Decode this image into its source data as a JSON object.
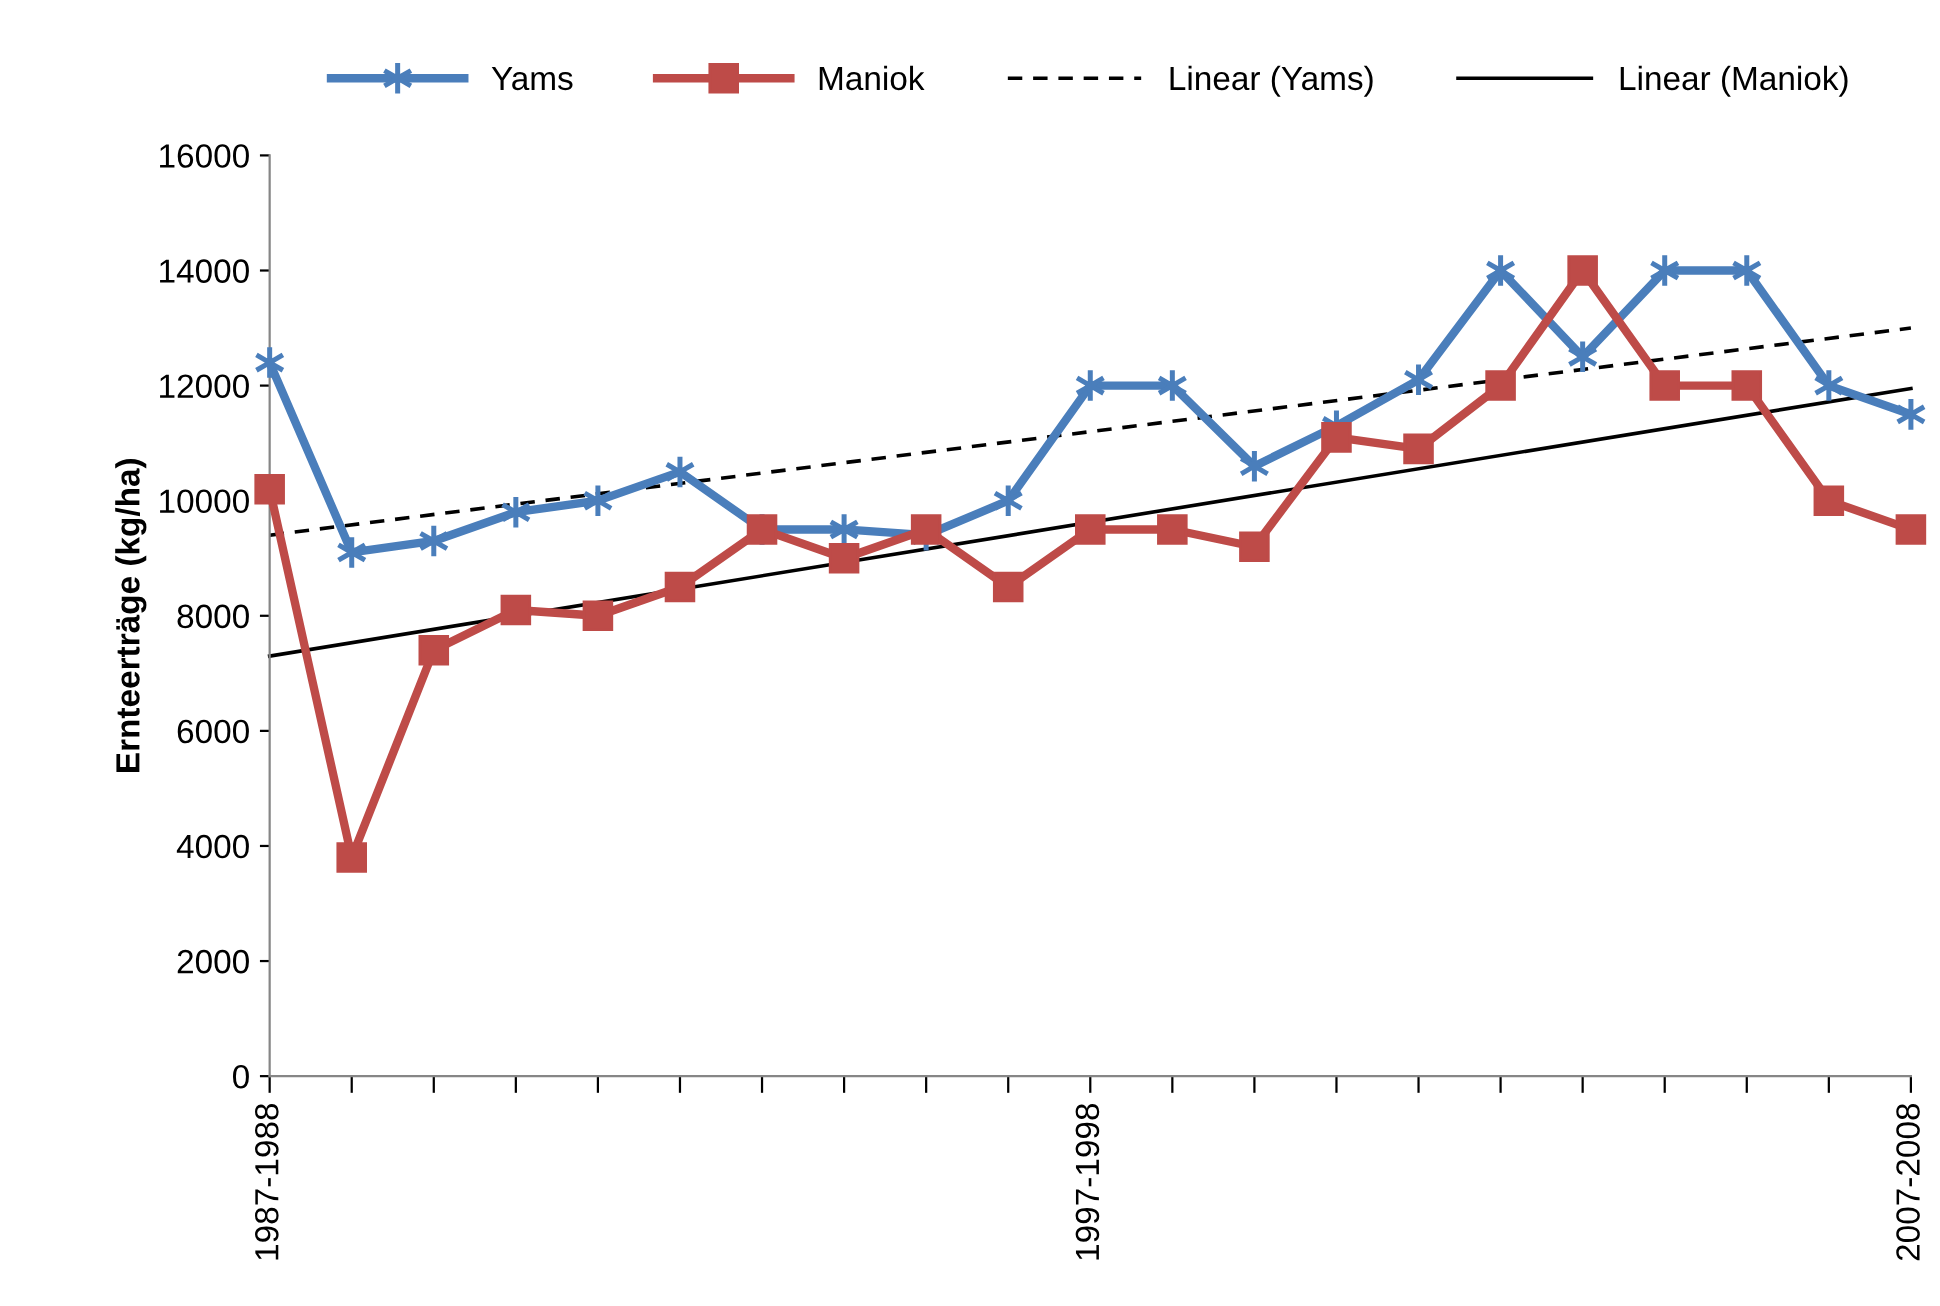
{
  "chart_data": {
    "type": "line",
    "ylabel": "Ernteerträge (kg/ha)",
    "categories": [
      "1987-1988",
      null,
      null,
      null,
      null,
      null,
      null,
      null,
      null,
      null,
      "1997-1998",
      null,
      null,
      null,
      null,
      null,
      null,
      null,
      null,
      null,
      "2007-2008"
    ],
    "series": [
      {
        "name": "Yams",
        "color": "#4a7ebb",
        "marker": "cross",
        "line_style": "solid",
        "values": [
          12400,
          9100,
          9300,
          9800,
          10000,
          10500,
          9500,
          9500,
          9400,
          10000,
          12000,
          12000,
          10600,
          11300,
          12100,
          14000,
          12500,
          14000,
          14000,
          12000,
          11500
        ]
      },
      {
        "name": "Maniok",
        "color": "#be4b48",
        "marker": "square",
        "line_style": "solid",
        "values": [
          10200,
          3800,
          7400,
          8100,
          8000,
          8500,
          9500,
          9000,
          9500,
          8500,
          9500,
          9500,
          9200,
          11100,
          10900,
          12000,
          14000,
          12000,
          12000,
          10000,
          9500
        ]
      },
      {
        "name": "Linear (Yams)",
        "color": "#000000",
        "marker": "none",
        "line_style": "dashed",
        "x": [
          "1987-1988",
          "2007-2008"
        ],
        "values": [
          9400,
          13000
        ]
      },
      {
        "name": "Linear (Maniok)",
        "color": "#000000",
        "marker": "none",
        "line_style": "solid",
        "x": [
          "1987-1988",
          "2007-2008"
        ],
        "values": [
          7300,
          11950
        ]
      }
    ],
    "ylim": [
      0,
      16000
    ],
    "yticks": [
      0,
      2000,
      4000,
      6000,
      8000,
      10000,
      12000,
      14000,
      16000
    ],
    "grid": false,
    "legend": "top"
  }
}
